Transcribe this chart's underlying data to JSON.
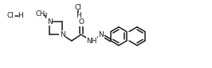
{
  "bg_color": "#ffffff",
  "line_color": "#1a1a1a",
  "line_width": 1.1,
  "font_size": 6.5,
  "figsize": [
    2.66,
    0.85
  ],
  "dpi": 100,
  "xlim": [
    0,
    26.6
  ],
  "ylim": [
    0,
    8.5
  ]
}
